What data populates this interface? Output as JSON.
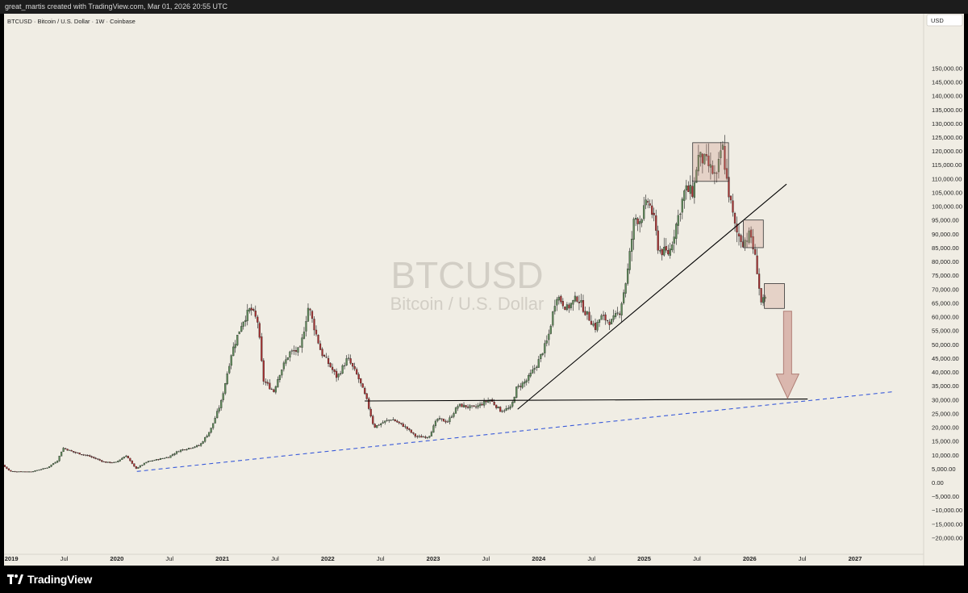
{
  "header": {
    "credit": "great_martis created with TradingView.com, Mar 01, 2026 20:55 UTC"
  },
  "footer": {
    "brand": "TradingView"
  },
  "colors": {
    "background": "#f0ede4",
    "candle_up": "#5f8a5a",
    "candle_down": "#a83232",
    "support_line": "#3a5bd9",
    "trendline": "#000000",
    "box_fill": "#c98b7e",
    "arrow_fill": "#d4a9a0"
  },
  "chart_data": {
    "type": "candlestick",
    "title": "BTCUSD · Bitcoin / U.S. Dollar · 1W · Coinbase",
    "watermark": {
      "symbol": "BTCUSD",
      "description": "Bitcoin / U.S. Dollar"
    },
    "axis_currency": "USD",
    "x_ticks": [
      "2019",
      "Jul",
      "2020",
      "Jul",
      "2021",
      "Jul",
      "2022",
      "Jul",
      "2023",
      "Jul",
      "2024",
      "Jul",
      "2025",
      "Jul",
      "2026",
      "Jul",
      "2027"
    ],
    "y_ticks": [
      "150,000.00",
      "145,000.00",
      "140,000.00",
      "135,000.00",
      "130,000.00",
      "125,000.00",
      "120,000.00",
      "115,000.00",
      "110,000.00",
      "105,000.00",
      "100,000.00",
      "95,000.00",
      "90,000.00",
      "85,000.00",
      "80,000.00",
      "75,000.00",
      "70,000.00",
      "65,000.00",
      "60,000.00",
      "55,000.00",
      "50,000.00",
      "45,000.00",
      "40,000.00",
      "35,000.00",
      "30,000.00",
      "25,000.00",
      "20,000.00",
      "15,000.00",
      "10,000.00",
      "5,000.00",
      "0.00",
      "−5,000.00",
      "−10,000.00",
      "−15,000.00",
      "−20,000.00"
    ],
    "ylim": [
      -22000,
      152000
    ],
    "xlim": [
      2018.93,
      2027.65
    ],
    "price_path": [
      [
        2018.93,
        6300
      ],
      [
        2019.0,
        4000
      ],
      [
        2019.2,
        3900
      ],
      [
        2019.35,
        5300
      ],
      [
        2019.45,
        8000
      ],
      [
        2019.5,
        12500
      ],
      [
        2019.6,
        11000
      ],
      [
        2019.75,
        9500
      ],
      [
        2019.9,
        7300
      ],
      [
        2020.0,
        7200
      ],
      [
        2020.1,
        9800
      ],
      [
        2020.19,
        5000
      ],
      [
        2020.3,
        7500
      ],
      [
        2020.5,
        9200
      ],
      [
        2020.6,
        11500
      ],
      [
        2020.8,
        13500
      ],
      [
        2020.9,
        19000
      ],
      [
        2021.0,
        29000
      ],
      [
        2021.1,
        47000
      ],
      [
        2021.2,
        58000
      ],
      [
        2021.28,
        63000
      ],
      [
        2021.35,
        58000
      ],
      [
        2021.4,
        37000
      ],
      [
        2021.5,
        33000
      ],
      [
        2021.55,
        39000
      ],
      [
        2021.65,
        47000
      ],
      [
        2021.75,
        48000
      ],
      [
        2021.83,
        64000
      ],
      [
        2021.87,
        58000
      ],
      [
        2021.95,
        47000
      ],
      [
        2022.02,
        43000
      ],
      [
        2022.1,
        38000
      ],
      [
        2022.2,
        45000
      ],
      [
        2022.3,
        38000
      ],
      [
        2022.38,
        30000
      ],
      [
        2022.45,
        20000
      ],
      [
        2022.55,
        22000
      ],
      [
        2022.62,
        23000
      ],
      [
        2022.75,
        20000
      ],
      [
        2022.85,
        16500
      ],
      [
        2022.97,
        16600
      ],
      [
        2023.05,
        23000
      ],
      [
        2023.15,
        22000
      ],
      [
        2023.25,
        28000
      ],
      [
        2023.4,
        27000
      ],
      [
        2023.55,
        30000
      ],
      [
        2023.65,
        26000
      ],
      [
        2023.75,
        27000
      ],
      [
        2023.8,
        34000
      ],
      [
        2023.9,
        37000
      ],
      [
        2024.0,
        43000
      ],
      [
        2024.1,
        52000
      ],
      [
        2024.18,
        68000
      ],
      [
        2024.28,
        63000
      ],
      [
        2024.38,
        67000
      ],
      [
        2024.45,
        62000
      ],
      [
        2024.55,
        56000
      ],
      [
        2024.6,
        60000
      ],
      [
        2024.7,
        58000
      ],
      [
        2024.78,
        62000
      ],
      [
        2024.85,
        75000
      ],
      [
        2024.92,
        96000
      ],
      [
        2024.97,
        95000
      ],
      [
        2025.05,
        102000
      ],
      [
        2025.1,
        96000
      ],
      [
        2025.15,
        84000
      ],
      [
        2025.25,
        83000
      ],
      [
        2025.32,
        94000
      ],
      [
        2025.4,
        106000
      ],
      [
        2025.48,
        105000
      ],
      [
        2025.52,
        118000
      ],
      [
        2025.6,
        116000
      ],
      [
        2025.7,
        110000
      ],
      [
        2025.75,
        123000
      ],
      [
        2025.8,
        108000
      ],
      [
        2025.88,
        91000
      ],
      [
        2025.95,
        87000
      ],
      [
        2026.02,
        90000
      ],
      [
        2026.08,
        78000
      ],
      [
        2026.12,
        65000
      ],
      [
        2026.16,
        66000
      ]
    ],
    "annotations": {
      "dashed_support": {
        "from": [
          "2020.19",
          4000
        ],
        "to": [
          "2027.35",
          32800
        ],
        "color": "blue",
        "style": "dashed"
      },
      "horizontal_level": {
        "from": [
          "2022.35",
          29500
        ],
        "to": [
          "2026.55",
          30200
        ],
        "color": "black"
      },
      "rising_trendline": {
        "from": [
          "2023.8",
          26500
        ],
        "to": [
          "2026.35",
          108000
        ],
        "color": "black"
      },
      "boxes": [
        {
          "x": [
            "2025.46",
            "2025.8"
          ],
          "y": [
            109000,
            123000
          ]
        },
        {
          "x": [
            "2025.94",
            "2026.13"
          ],
          "y": [
            85000,
            95000
          ]
        },
        {
          "x": [
            "2026.14",
            "2026.33"
          ],
          "y": [
            63000,
            72000
          ]
        }
      ],
      "arrow": {
        "x": "2026.36",
        "from_price": 62000,
        "to_price": 30500,
        "direction": "down"
      }
    }
  }
}
